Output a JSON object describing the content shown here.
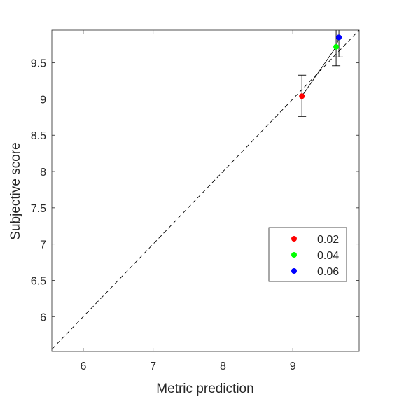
{
  "chart_data": {
    "type": "scatter",
    "xlabel": "Metric prediction",
    "ylabel": "Subjective score",
    "xlim": [
      5.55,
      9.95
    ],
    "ylim": [
      5.52,
      9.95
    ],
    "xticks": [
      6,
      7,
      8,
      9
    ],
    "yticks": [
      6,
      6.5,
      7,
      7.5,
      8,
      8.5,
      9,
      9.5
    ],
    "xtick_labels": [
      "6",
      "7",
      "8",
      "9"
    ],
    "ytick_labels": [
      "6",
      "6.5",
      "7",
      "7.5",
      "8",
      "8.5",
      "9",
      "9.5"
    ],
    "grid": false,
    "legend_position": "right, lower middle",
    "diagonal_reference": {
      "from": [
        5.55,
        5.55
      ],
      "to": [
        9.95,
        9.95
      ],
      "style": "dashed"
    },
    "series": [
      {
        "name": "0.02",
        "color": "#ff0000",
        "x": 9.13,
        "y": 9.04,
        "err_low": 8.76,
        "err_high": 9.33
      },
      {
        "name": "0.04",
        "color": "#00ff00",
        "x": 9.62,
        "y": 9.72,
        "err_low": 9.46,
        "err_high": 9.98
      },
      {
        "name": "0.06",
        "color": "#0000ff",
        "x": 9.66,
        "y": 9.85,
        "err_low": 9.58,
        "err_high": 9.99
      }
    ],
    "connecting_line": true
  }
}
